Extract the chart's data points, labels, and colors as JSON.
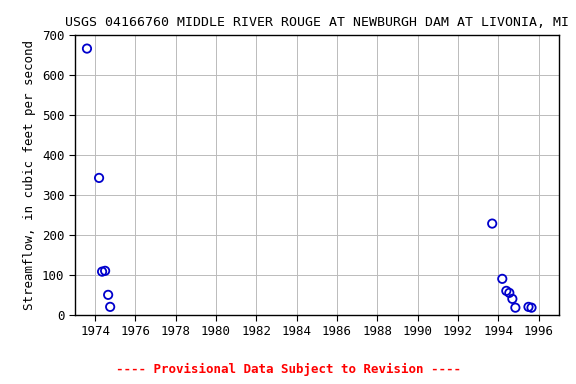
{
  "title": "USGS 04166760 MIDDLE RIVER ROUGE AT NEWBURGH DAM AT LIVONIA, MI",
  "ylabel": "Streamflow, in cubic feet per second",
  "xlim": [
    1973,
    1997
  ],
  "ylim": [
    0,
    700
  ],
  "xticks": [
    1974,
    1976,
    1978,
    1980,
    1982,
    1984,
    1986,
    1988,
    1990,
    1992,
    1994,
    1996
  ],
  "yticks": [
    0,
    100,
    200,
    300,
    400,
    500,
    600,
    700
  ],
  "x_data": [
    1973.6,
    1974.2,
    1974.35,
    1974.5,
    1974.65,
    1974.75,
    1993.7,
    1994.2,
    1994.4,
    1994.55,
    1994.7,
    1994.85,
    1995.5,
    1995.65
  ],
  "y_data": [
    665,
    342,
    108,
    110,
    50,
    20,
    228,
    90,
    60,
    55,
    40,
    18,
    20,
    18
  ],
  "marker_color": "#0000cc",
  "marker_size": 6,
  "grid_color": "#bbbbbb",
  "background_color": "#ffffff",
  "footer_text": "---- Provisional Data Subject to Revision ----",
  "footer_color": "#ff0000",
  "title_fontsize": 9.5,
  "ylabel_fontsize": 9,
  "tick_fontsize": 9,
  "footer_fontsize": 9
}
